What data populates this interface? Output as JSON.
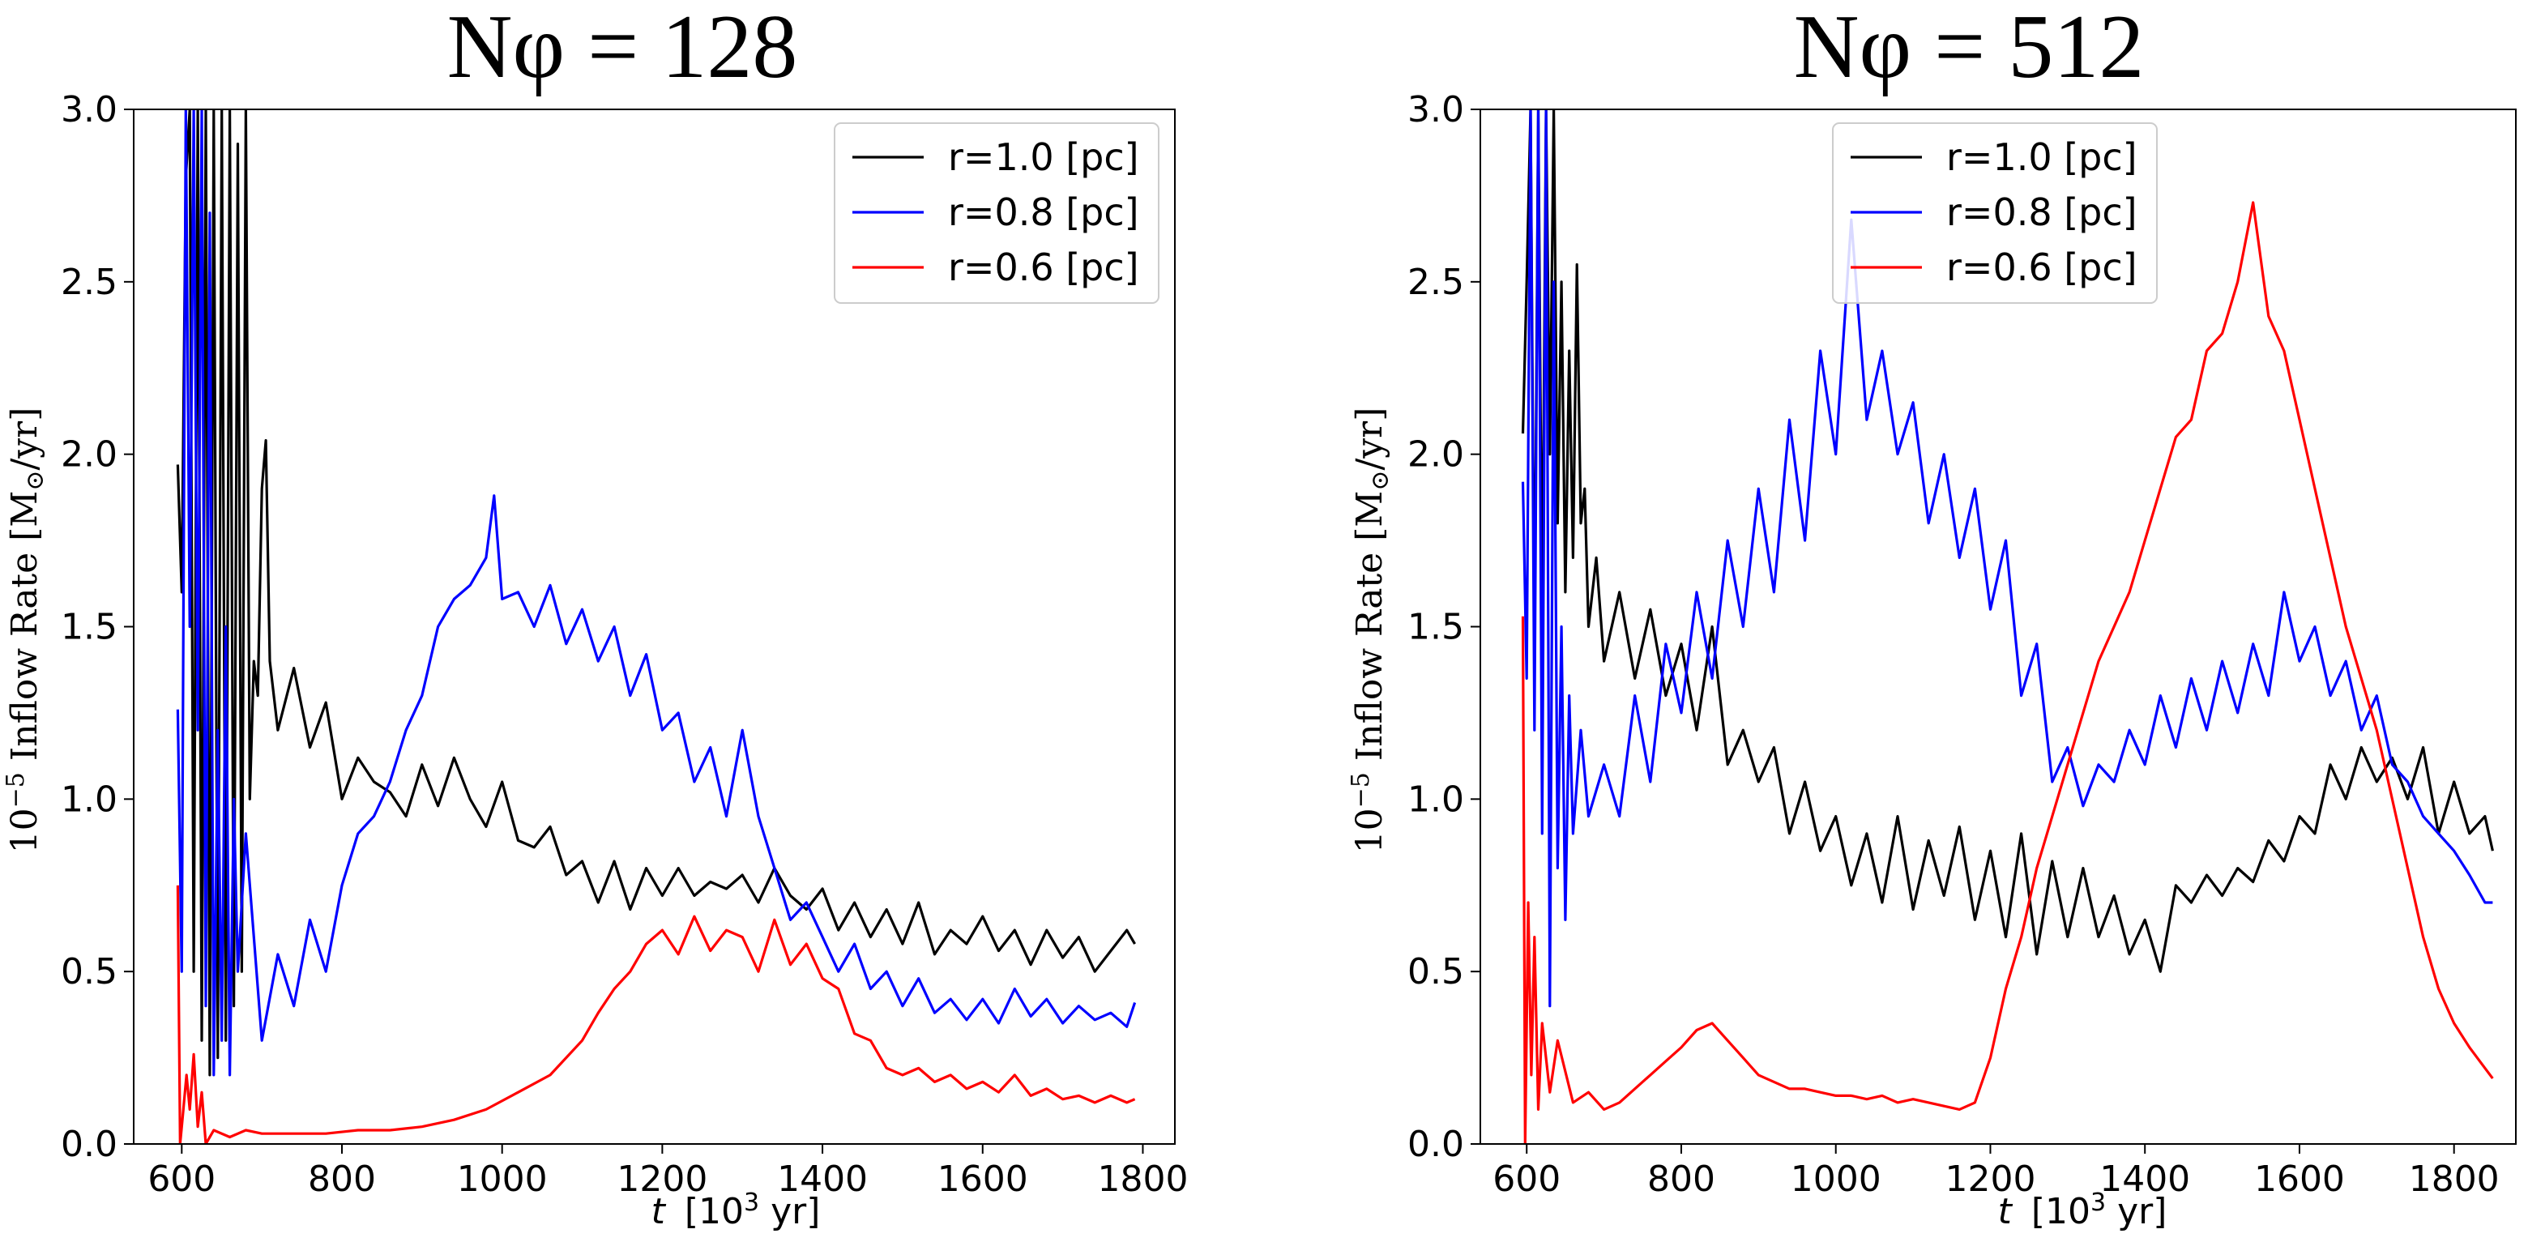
{
  "chart_data": [
    {
      "type": "line",
      "title": "Nφ = 128",
      "xlabel_var": "t",
      "xlabel_unit": "[10",
      "xlabel_exp": "3",
      "xlabel_tail": " yr]",
      "ylabel_prefix": "10",
      "ylabel_exp": "−5",
      "ylabel_text": " Inflow Rate [M",
      "ylabel_sun": "⊙",
      "ylabel_tail": "/yr]",
      "xlim": [
        540,
        1840
      ],
      "ylim": [
        0,
        3.0
      ],
      "xticks": [
        "600",
        "800",
        "1000",
        "1200",
        "1400",
        "1600",
        "1800"
      ],
      "yticks": [
        "0.0",
        "0.5",
        "1.0",
        "1.5",
        "2.0",
        "2.5",
        "3.0"
      ],
      "legend_position": "top-right",
      "series": [
        {
          "name": "r=1.0 [pc]",
          "color": "#000000",
          "x": [
            595,
            600,
            605,
            610,
            615,
            620,
            625,
            630,
            635,
            640,
            645,
            650,
            655,
            660,
            665,
            670,
            675,
            680,
            685,
            690,
            695,
            700,
            705,
            710,
            720,
            740,
            760,
            780,
            800,
            820,
            840,
            860,
            880,
            900,
            920,
            940,
            960,
            980,
            1000,
            1020,
            1040,
            1060,
            1080,
            1100,
            1120,
            1140,
            1160,
            1180,
            1200,
            1220,
            1240,
            1260,
            1280,
            1300,
            1320,
            1340,
            1360,
            1380,
            1400,
            1420,
            1440,
            1460,
            1480,
            1500,
            1520,
            1540,
            1560,
            1580,
            1600,
            1620,
            1640,
            1660,
            1680,
            1700,
            1720,
            1740,
            1760,
            1780,
            1790
          ],
          "y": [
            1.97,
            1.6,
            2.8,
            3.0,
            0.5,
            3.0,
            0.3,
            3.0,
            0.2,
            3.0,
            0.25,
            3.0,
            0.3,
            3.0,
            0.4,
            2.9,
            0.5,
            3.0,
            1.0,
            1.4,
            1.3,
            1.9,
            2.04,
            1.4,
            1.2,
            1.38,
            1.15,
            1.28,
            1.0,
            1.12,
            1.05,
            1.02,
            0.95,
            1.1,
            0.98,
            1.12,
            1.0,
            0.92,
            1.05,
            0.88,
            0.86,
            0.92,
            0.78,
            0.82,
            0.7,
            0.82,
            0.68,
            0.8,
            0.72,
            0.8,
            0.72,
            0.76,
            0.74,
            0.78,
            0.7,
            0.8,
            0.72,
            0.68,
            0.74,
            0.62,
            0.7,
            0.6,
            0.68,
            0.58,
            0.7,
            0.55,
            0.62,
            0.58,
            0.66,
            0.56,
            0.62,
            0.52,
            0.62,
            0.54,
            0.6,
            0.5,
            0.56,
            0.62,
            0.58
          ]
        },
        {
          "name": "r=0.8 [pc]",
          "color": "#0000ff",
          "x": [
            595,
            600,
            605,
            610,
            615,
            620,
            625,
            630,
            635,
            640,
            645,
            650,
            655,
            660,
            665,
            670,
            680,
            700,
            720,
            740,
            760,
            780,
            800,
            820,
            840,
            860,
            880,
            900,
            920,
            940,
            960,
            980,
            990,
            1000,
            1020,
            1040,
            1060,
            1080,
            1100,
            1120,
            1140,
            1160,
            1180,
            1200,
            1220,
            1240,
            1260,
            1280,
            1300,
            1320,
            1340,
            1360,
            1380,
            1400,
            1420,
            1440,
            1460,
            1480,
            1500,
            1520,
            1540,
            1560,
            1580,
            1600,
            1620,
            1640,
            1660,
            1680,
            1700,
            1720,
            1740,
            1760,
            1780,
            1790
          ],
          "y": [
            1.26,
            0.5,
            3.0,
            1.5,
            3.0,
            1.2,
            3.0,
            0.4,
            2.7,
            0.2,
            1.2,
            0.3,
            1.5,
            0.2,
            1.0,
            0.5,
            0.9,
            0.3,
            0.55,
            0.4,
            0.65,
            0.5,
            0.75,
            0.9,
            0.95,
            1.05,
            1.2,
            1.3,
            1.5,
            1.58,
            1.62,
            1.7,
            1.88,
            1.58,
            1.6,
            1.5,
            1.62,
            1.45,
            1.55,
            1.4,
            1.5,
            1.3,
            1.42,
            1.2,
            1.25,
            1.05,
            1.15,
            0.95,
            1.2,
            0.95,
            0.8,
            0.65,
            0.7,
            0.6,
            0.5,
            0.58,
            0.45,
            0.5,
            0.4,
            0.48,
            0.38,
            0.42,
            0.36,
            0.42,
            0.35,
            0.45,
            0.37,
            0.42,
            0.35,
            0.4,
            0.36,
            0.38,
            0.34,
            0.41
          ]
        },
        {
          "name": "r=0.6 [pc]",
          "color": "#ff0000",
          "x": [
            595,
            598,
            602,
            606,
            610,
            615,
            620,
            625,
            630,
            640,
            660,
            680,
            700,
            740,
            780,
            820,
            860,
            900,
            940,
            980,
            1020,
            1060,
            1100,
            1120,
            1140,
            1160,
            1180,
            1200,
            1220,
            1240,
            1260,
            1280,
            1300,
            1320,
            1340,
            1360,
            1380,
            1400,
            1420,
            1440,
            1460,
            1480,
            1500,
            1520,
            1540,
            1560,
            1580,
            1600,
            1620,
            1640,
            1660,
            1680,
            1700,
            1720,
            1740,
            1760,
            1780,
            1790
          ],
          "y": [
            0.75,
            0.0,
            0.1,
            0.2,
            0.1,
            0.26,
            0.05,
            0.15,
            0.0,
            0.04,
            0.02,
            0.04,
            0.03,
            0.03,
            0.03,
            0.04,
            0.04,
            0.05,
            0.07,
            0.1,
            0.15,
            0.2,
            0.3,
            0.38,
            0.45,
            0.5,
            0.58,
            0.62,
            0.55,
            0.66,
            0.56,
            0.62,
            0.6,
            0.5,
            0.65,
            0.52,
            0.58,
            0.48,
            0.45,
            0.32,
            0.3,
            0.22,
            0.2,
            0.22,
            0.18,
            0.2,
            0.16,
            0.18,
            0.15,
            0.2,
            0.14,
            0.16,
            0.13,
            0.14,
            0.12,
            0.14,
            0.12,
            0.13
          ]
        }
      ]
    },
    {
      "type": "line",
      "title": "Nφ = 512",
      "xlabel_var": "t",
      "xlabel_unit": "[10",
      "xlabel_exp": "3",
      "xlabel_tail": " yr]",
      "ylabel_prefix": "10",
      "ylabel_exp": "−5",
      "ylabel_text": " Inflow Rate [M",
      "ylabel_sun": "⊙",
      "ylabel_tail": "/yr]",
      "xlim": [
        540,
        1880
      ],
      "ylim": [
        0,
        3.0
      ],
      "xticks": [
        "600",
        "800",
        "1000",
        "1200",
        "1400",
        "1600",
        "1800"
      ],
      "yticks": [
        "0.0",
        "0.5",
        "1.0",
        "1.5",
        "2.0",
        "2.5",
        "3.0"
      ],
      "legend_position": "top-center",
      "series": [
        {
          "name": "r=1.0 [pc]",
          "color": "#000000",
          "x": [
            595,
            600,
            605,
            610,
            615,
            620,
            625,
            630,
            635,
            640,
            645,
            650,
            655,
            660,
            665,
            670,
            675,
            680,
            690,
            700,
            720,
            740,
            760,
            780,
            800,
            820,
            840,
            860,
            880,
            900,
            920,
            940,
            960,
            980,
            1000,
            1020,
            1040,
            1060,
            1080,
            1100,
            1120,
            1140,
            1160,
            1180,
            1200,
            1220,
            1240,
            1260,
            1280,
            1300,
            1320,
            1340,
            1360,
            1380,
            1400,
            1420,
            1440,
            1460,
            1480,
            1500,
            1520,
            1540,
            1560,
            1580,
            1600,
            1620,
            1640,
            1660,
            1680,
            1700,
            1720,
            1740,
            1760,
            1780,
            1800,
            1820,
            1840,
            1850
          ],
          "y": [
            2.06,
            2.5,
            3.0,
            1.4,
            3.0,
            1.5,
            3.0,
            2.0,
            3.0,
            1.8,
            2.5,
            1.6,
            2.3,
            1.7,
            2.55,
            1.8,
            1.9,
            1.5,
            1.7,
            1.4,
            1.6,
            1.35,
            1.55,
            1.3,
            1.45,
            1.2,
            1.5,
            1.1,
            1.2,
            1.05,
            1.15,
            0.9,
            1.05,
            0.85,
            0.95,
            0.75,
            0.9,
            0.7,
            0.95,
            0.68,
            0.88,
            0.72,
            0.92,
            0.65,
            0.85,
            0.6,
            0.9,
            0.55,
            0.82,
            0.6,
            0.8,
            0.6,
            0.72,
            0.55,
            0.65,
            0.5,
            0.75,
            0.7,
            0.78,
            0.72,
            0.8,
            0.76,
            0.88,
            0.82,
            0.95,
            0.9,
            1.1,
            1.0,
            1.15,
            1.05,
            1.12,
            1.0,
            1.15,
            0.9,
            1.05,
            0.9,
            0.95,
            0.85
          ]
        },
        {
          "name": "r=0.8 [pc]",
          "color": "#0000ff",
          "x": [
            595,
            600,
            605,
            610,
            615,
            620,
            625,
            630,
            635,
            640,
            645,
            650,
            655,
            660,
            670,
            680,
            700,
            720,
            740,
            760,
            780,
            800,
            820,
            840,
            860,
            880,
            900,
            920,
            940,
            960,
            980,
            1000,
            1020,
            1040,
            1060,
            1080,
            1100,
            1120,
            1140,
            1160,
            1180,
            1200,
            1220,
            1240,
            1260,
            1280,
            1300,
            1320,
            1340,
            1360,
            1380,
            1400,
            1420,
            1440,
            1460,
            1480,
            1500,
            1520,
            1540,
            1560,
            1580,
            1600,
            1620,
            1640,
            1660,
            1680,
            1700,
            1720,
            1740,
            1760,
            1780,
            1800,
            1820,
            1840,
            1850
          ],
          "y": [
            1.92,
            1.35,
            3.0,
            1.2,
            3.0,
            0.9,
            3.0,
            0.4,
            2.5,
            0.8,
            1.5,
            0.65,
            1.3,
            0.9,
            1.2,
            0.95,
            1.1,
            0.95,
            1.3,
            1.05,
            1.45,
            1.25,
            1.6,
            1.35,
            1.75,
            1.5,
            1.9,
            1.6,
            2.1,
            1.75,
            2.3,
            2.0,
            2.68,
            2.1,
            2.3,
            2.0,
            2.15,
            1.8,
            2.0,
            1.7,
            1.9,
            1.55,
            1.75,
            1.3,
            1.45,
            1.05,
            1.15,
            0.98,
            1.1,
            1.05,
            1.2,
            1.1,
            1.3,
            1.15,
            1.35,
            1.2,
            1.4,
            1.25,
            1.45,
            1.3,
            1.6,
            1.4,
            1.5,
            1.3,
            1.4,
            1.2,
            1.3,
            1.1,
            1.05,
            0.95,
            0.9,
            0.85,
            0.78,
            0.7,
            0.7
          ]
        },
        {
          "name": "r=0.6 [pc]",
          "color": "#ff0000",
          "x": [
            595,
            598,
            602,
            606,
            610,
            615,
            620,
            630,
            640,
            660,
            680,
            700,
            720,
            740,
            760,
            780,
            800,
            820,
            840,
            860,
            880,
            900,
            920,
            940,
            960,
            980,
            1000,
            1020,
            1040,
            1060,
            1080,
            1100,
            1120,
            1140,
            1160,
            1180,
            1200,
            1220,
            1240,
            1260,
            1280,
            1300,
            1320,
            1340,
            1360,
            1380,
            1400,
            1420,
            1440,
            1460,
            1480,
            1500,
            1520,
            1540,
            1560,
            1580,
            1600,
            1620,
            1640,
            1660,
            1680,
            1700,
            1720,
            1740,
            1760,
            1780,
            1800,
            1820,
            1840,
            1850
          ],
          "y": [
            1.53,
            0.0,
            0.7,
            0.2,
            0.6,
            0.1,
            0.35,
            0.15,
            0.3,
            0.12,
            0.15,
            0.1,
            0.12,
            0.16,
            0.2,
            0.24,
            0.28,
            0.33,
            0.35,
            0.3,
            0.25,
            0.2,
            0.18,
            0.16,
            0.16,
            0.15,
            0.14,
            0.14,
            0.13,
            0.14,
            0.12,
            0.13,
            0.12,
            0.11,
            0.1,
            0.12,
            0.25,
            0.45,
            0.6,
            0.8,
            0.95,
            1.1,
            1.25,
            1.4,
            1.5,
            1.6,
            1.75,
            1.9,
            2.05,
            2.1,
            2.3,
            2.35,
            2.5,
            2.73,
            2.4,
            2.3,
            2.1,
            1.9,
            1.7,
            1.5,
            1.35,
            1.2,
            1.0,
            0.8,
            0.6,
            0.45,
            0.35,
            0.28,
            0.22,
            0.19
          ]
        }
      ]
    }
  ]
}
